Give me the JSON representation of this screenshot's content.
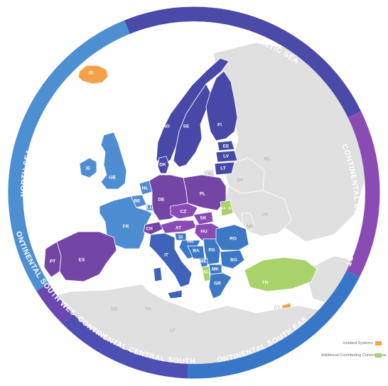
{
  "colors": {
    "ring_north_sea": "#4e8fd2",
    "ring_baltic_sea": "#4a4aa8",
    "ring_continental_central_east": "#8a4cb4",
    "ring_continental_south_east": "#3876c8",
    "ring_continental_central_south": "#4e4fb2",
    "ring_continental_south_west": "#6a48b0",
    "nordic": "#4848a8",
    "north_sea": "#4f8dd2",
    "central_south": "#3f63b9",
    "central_east": "#8a4cb4",
    "south_west": "#7346a6",
    "south_east": "#3d78c4",
    "additional": "#a8d26a",
    "isolated": "#f3a24b",
    "land_other": "#e0e0e0"
  },
  "regions": {
    "north_sea": "NORTH SEA",
    "baltic_sea": "BALTIC SEA",
    "continental_central_east": "CONTINENTAL CENTRAL EAST",
    "continental_south_east": "CONTINENTAL SOUTH EAST",
    "continental_central_south": "CONTINENTAL CENTRAL SOUTH",
    "continental_south_west": "CONTINENTAL SOUTH WEST"
  },
  "countries": {
    "IS": "IS",
    "NO": "NO",
    "SE": "SE",
    "FI": "FI",
    "EE": "EE",
    "LV": "LV",
    "LT": "LT",
    "DK": "DK",
    "IE": "IE",
    "GB": "GB",
    "NL": "NL",
    "BE": "BE",
    "LU": "LU",
    "DE": "DE",
    "PL": "PL",
    "FR": "FR",
    "CZ": "CZ",
    "SK": "SK",
    "CH": "CH",
    "AT": "AT",
    "HU": "HU",
    "SI": "SI",
    "HR": "HR",
    "BA": "BA",
    "RS": "RS",
    "RO": "RO",
    "BG": "BG",
    "IT": "IT",
    "ME": "ME",
    "AL": "AL",
    "MK": "MK",
    "GR": "GR",
    "PT": "PT",
    "ES": "ES",
    "BA_N": "BA - N",
    "TR": "TR",
    "CY": "CY",
    "RU": "RU",
    "BY": "BY",
    "UA": "UA",
    "MD": "MD",
    "DZ": "DZ",
    "TN": "TN",
    "LY": "LY",
    "RU_K": "RU"
  },
  "legend": {
    "isolated": "Isolated Systems",
    "additional": "Additional Contributing Control Areas"
  }
}
